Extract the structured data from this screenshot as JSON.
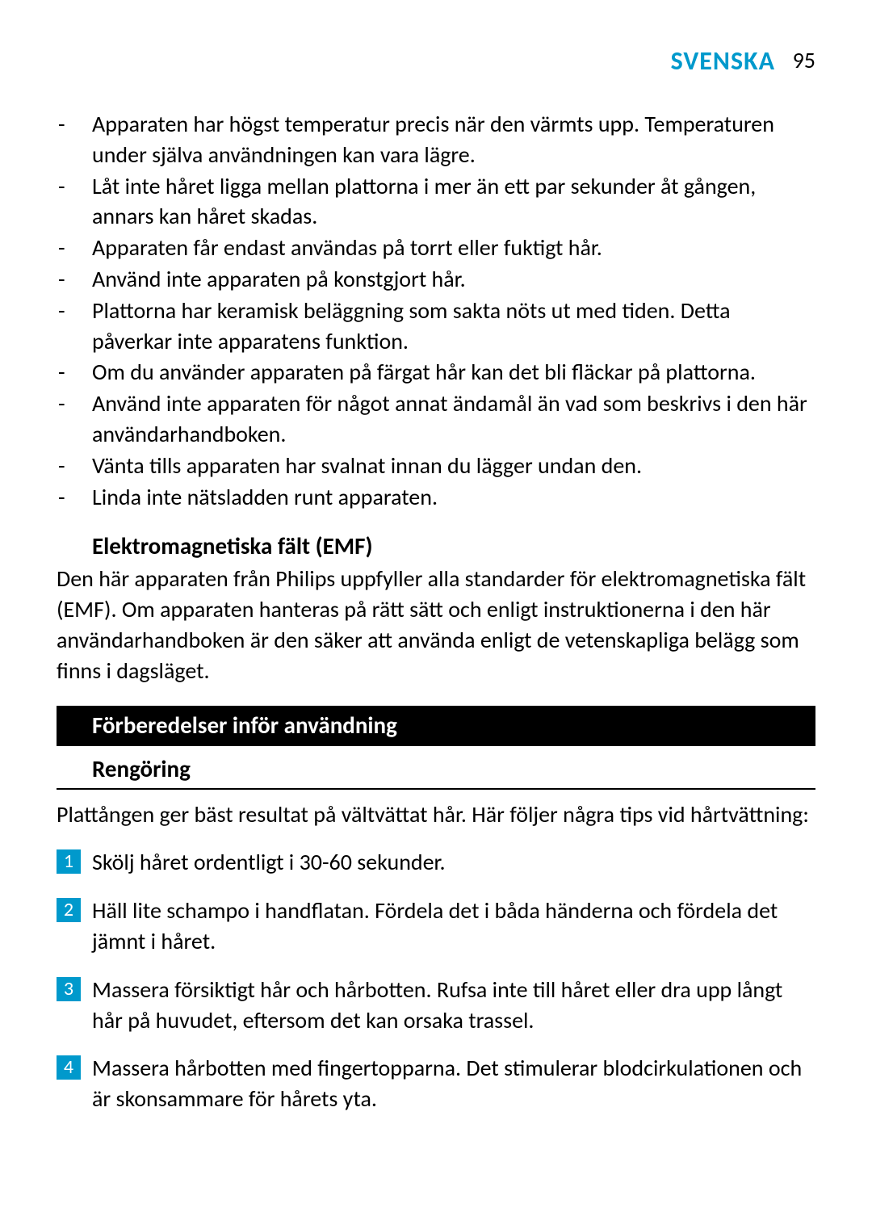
{
  "header": {
    "language": "SVENSKA",
    "page_number": "95",
    "lang_color": "#0099cc"
  },
  "bullets": [
    "Apparaten har högst temperatur precis när den värmts upp. Temperaturen under själva användningen kan vara lägre.",
    "Låt inte håret ligga mellan plattorna i mer än ett par sekunder åt gången, annars kan håret skadas.",
    "Apparaten får endast användas på torrt eller fuktigt hår.",
    "Använd inte apparaten på konstgjort hår.",
    "Plattorna har keramisk beläggning som sakta nöts ut med tiden. Detta påverkar inte apparatens funktion.",
    "Om du använder apparaten på färgat hår kan det bli fläckar på plattorna.",
    "Använd inte apparaten för något annat ändamål än vad som beskrivs i den här användarhandboken.",
    "Vänta tills apparaten har svalnat innan du lägger undan den.",
    "Linda inte nätsladden runt apparaten."
  ],
  "emf": {
    "heading": "Elektromagnetiska fält (EMF)",
    "text": "Den här apparaten från Philips uppfyller alla standarder för elektromagnetiska fält (EMF). Om apparaten hanteras på rätt sätt och enligt instruktionerna i den här användarhandboken är den säker att använda enligt de vetenskapliga belägg som finns i dagsläget."
  },
  "section": {
    "title": "Förberedelser inför användning",
    "bar_bg": "#000000",
    "bar_fg": "#ffffff"
  },
  "subsection": {
    "title": "Rengöring",
    "intro": "Plattången ger bäst resultat på vältvättat hår. Här följer några tips vid hårtvättning:"
  },
  "steps": [
    {
      "n": "1",
      "text": "Skölj håret ordentligt i 30-60 sekunder."
    },
    {
      "n": "2",
      "text": "Häll lite schampo i handflatan. Fördela det i båda händerna och fördela det jämnt i håret."
    },
    {
      "n": "3",
      "text": "Massera försiktigt hår och hårbotten. Rufsa inte till håret eller dra upp långt hår på huvudet, eftersom det kan orsaka trassel."
    },
    {
      "n": "4",
      "text": "Massera hårbotten med fingertopparna. Det stimulerar blodcirkulationen och är skonsammare för hårets yta."
    }
  ],
  "step_badge_color": "#0099cc"
}
